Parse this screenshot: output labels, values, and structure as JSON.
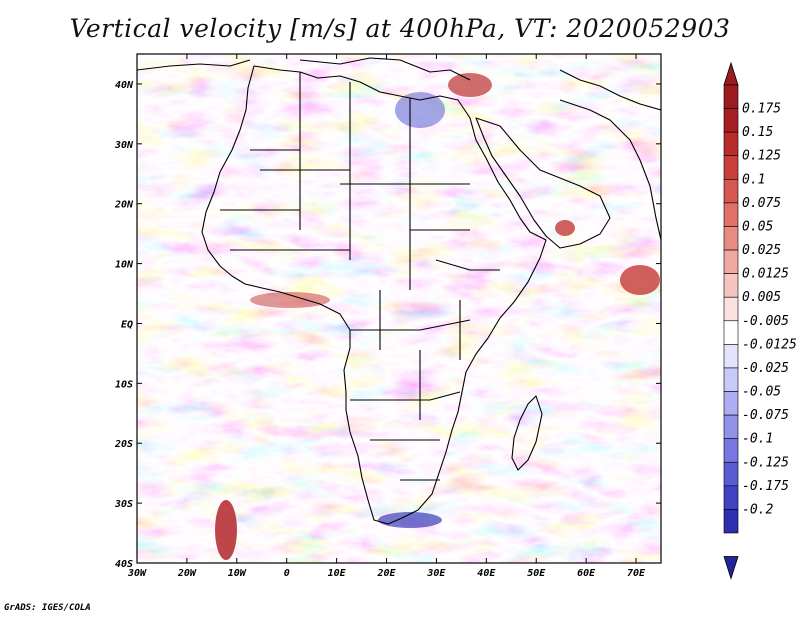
{
  "title": "Vertical velocity [m/s] at 400hPa, VT: 2020052903",
  "credit": "GrADS: IGES/COLA",
  "map": {
    "lon_range": [
      -30,
      75
    ],
    "lat_range": [
      -40,
      45
    ],
    "lon_ticks": [
      {
        "value": -30,
        "label": "30W"
      },
      {
        "value": -20,
        "label": "20W"
      },
      {
        "value": -10,
        "label": "10W"
      },
      {
        "value": 0,
        "label": "0"
      },
      {
        "value": 10,
        "label": "10E"
      },
      {
        "value": 20,
        "label": "20E"
      },
      {
        "value": 30,
        "label": "30E"
      },
      {
        "value": 40,
        "label": "40E"
      },
      {
        "value": 50,
        "label": "50E"
      },
      {
        "value": 60,
        "label": "60E"
      },
      {
        "value": 70,
        "label": "70E"
      }
    ],
    "lat_ticks": [
      {
        "value": 40,
        "label": "40N"
      },
      {
        "value": 30,
        "label": "30N"
      },
      {
        "value": 20,
        "label": "20N"
      },
      {
        "value": 10,
        "label": "10N"
      },
      {
        "value": 0,
        "label": "EQ"
      },
      {
        "value": -10,
        "label": "10S"
      },
      {
        "value": -20,
        "label": "20S"
      },
      {
        "value": -30,
        "label": "30S"
      },
      {
        "value": -40,
        "label": "40S"
      }
    ]
  },
  "colorbar": {
    "levels": [
      {
        "label": "0.175",
        "color": "#a51f24"
      },
      {
        "label": "0.15",
        "color": "#b92c2c"
      },
      {
        "label": "0.125",
        "color": "#c93f3b"
      },
      {
        "label": "0.1",
        "color": "#d65650"
      },
      {
        "label": "0.075",
        "color": "#e07068"
      },
      {
        "label": "0.05",
        "color": "#e98b83"
      },
      {
        "label": "0.025",
        "color": "#f0a8a2"
      },
      {
        "label": "0.0125",
        "color": "#f6c5c1"
      },
      {
        "label": "0.005",
        "color": "#fbe2e0"
      },
      {
        "label": "-0.005",
        "color": "#ffffff"
      },
      {
        "label": "-0.0125",
        "color": "#e3e4fb"
      },
      {
        "label": "-0.025",
        "color": "#c8c9f6"
      },
      {
        "label": "-0.05",
        "color": "#adaef1"
      },
      {
        "label": "-0.075",
        "color": "#9192ea"
      },
      {
        "label": "-0.1",
        "color": "#7677e0"
      },
      {
        "label": "-0.125",
        "color": "#5b5cd4"
      },
      {
        "label": "-0.175",
        "color": "#4243c4"
      },
      {
        "label": "-0.2",
        "color": "#2d2eb0"
      }
    ],
    "top_color": "#9b1b1f",
    "bottom_color": "#23239e"
  }
}
